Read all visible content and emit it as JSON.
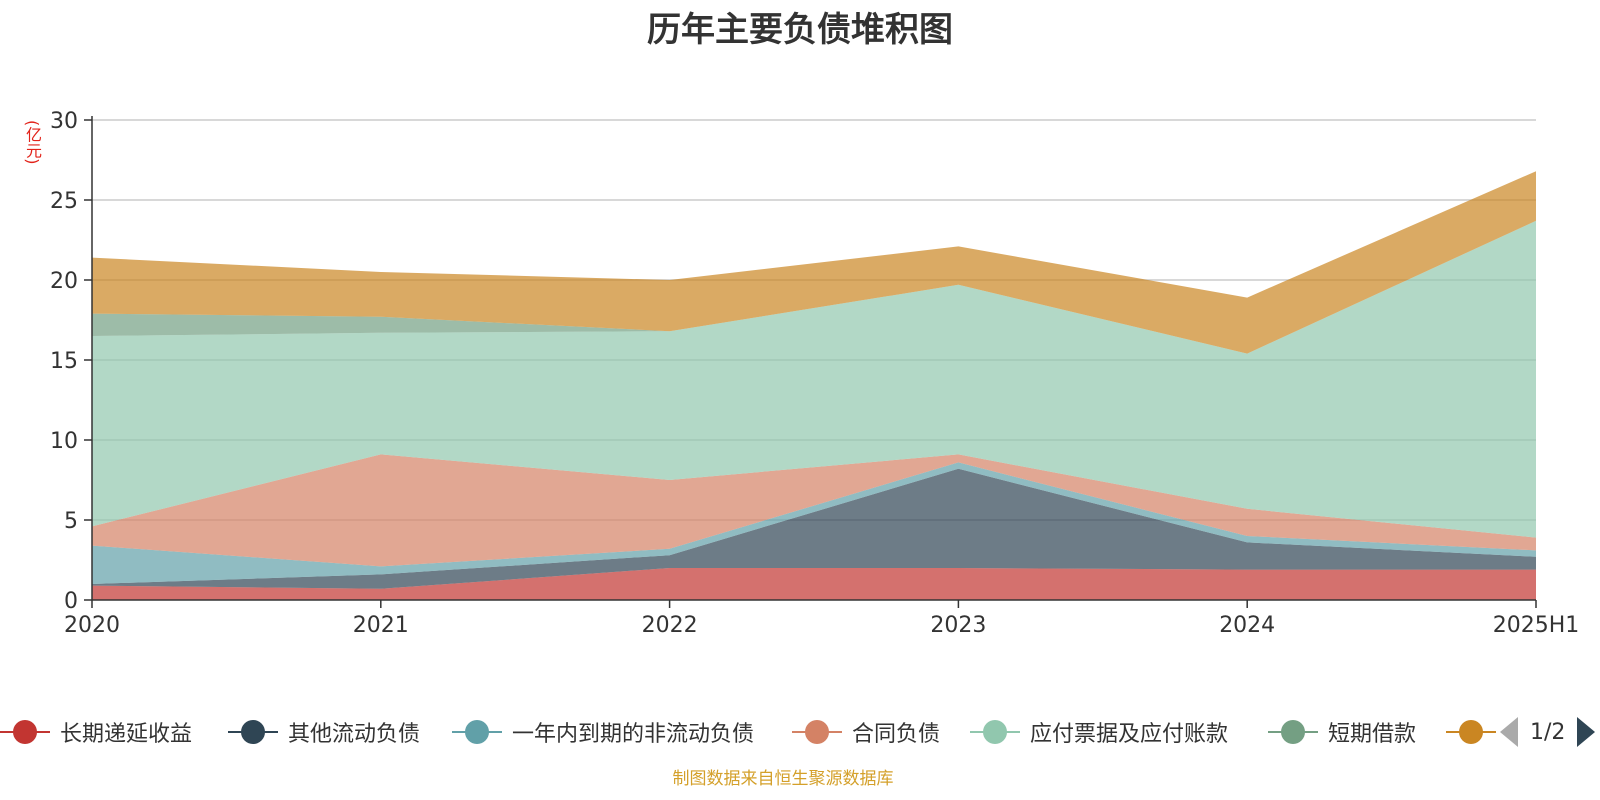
{
  "page": {
    "title": "历年主要负债堆积图",
    "unit": "(亿元)",
    "source": "制图数据来自恒生聚源数据库"
  },
  "chart_data": {
    "type": "area",
    "stacked": true,
    "title": "历年主要负债堆积图",
    "ylabel": "(亿元)",
    "x": [
      "2020",
      "2021",
      "2022",
      "2023",
      "2024",
      "2025H1"
    ],
    "yticks": [
      0,
      5,
      10,
      15,
      20,
      25,
      30
    ],
    "ylim": [
      0,
      30
    ],
    "grid": true,
    "legend_position": "bottom",
    "series": [
      {
        "name": "长期递延收益",
        "color": "#c23531",
        "values": [
          0.9,
          0.7,
          2.0,
          2.0,
          1.9,
          1.9
        ]
      },
      {
        "name": "其他流动负债",
        "color": "#2f4554",
        "values": [
          0.1,
          0.9,
          0.8,
          6.2,
          1.7,
          0.8
        ]
      },
      {
        "name": "一年内到期的非流动负债",
        "color": "#61a0a8",
        "values": [
          2.4,
          0.5,
          0.4,
          0.4,
          0.4,
          0.4
        ]
      },
      {
        "name": "合同负债",
        "color": "#d48265",
        "values": [
          1.2,
          7.0,
          4.3,
          0.5,
          1.7,
          0.8
        ]
      },
      {
        "name": "应付票据及应付账款",
        "color": "#91c7ae",
        "values": [
          11.9,
          7.6,
          9.3,
          10.6,
          9.7,
          19.8
        ]
      },
      {
        "name": "短期借款",
        "color": "#749f83",
        "values": [
          1.4,
          1.0,
          0.0,
          0.0,
          0.0,
          0.0
        ]
      },
      {
        "name": "",
        "color": "#ca8622",
        "values": [
          3.5,
          2.8,
          3.2,
          2.4,
          3.5,
          3.1
        ]
      }
    ]
  },
  "legend": {
    "page_text": "1/2"
  }
}
